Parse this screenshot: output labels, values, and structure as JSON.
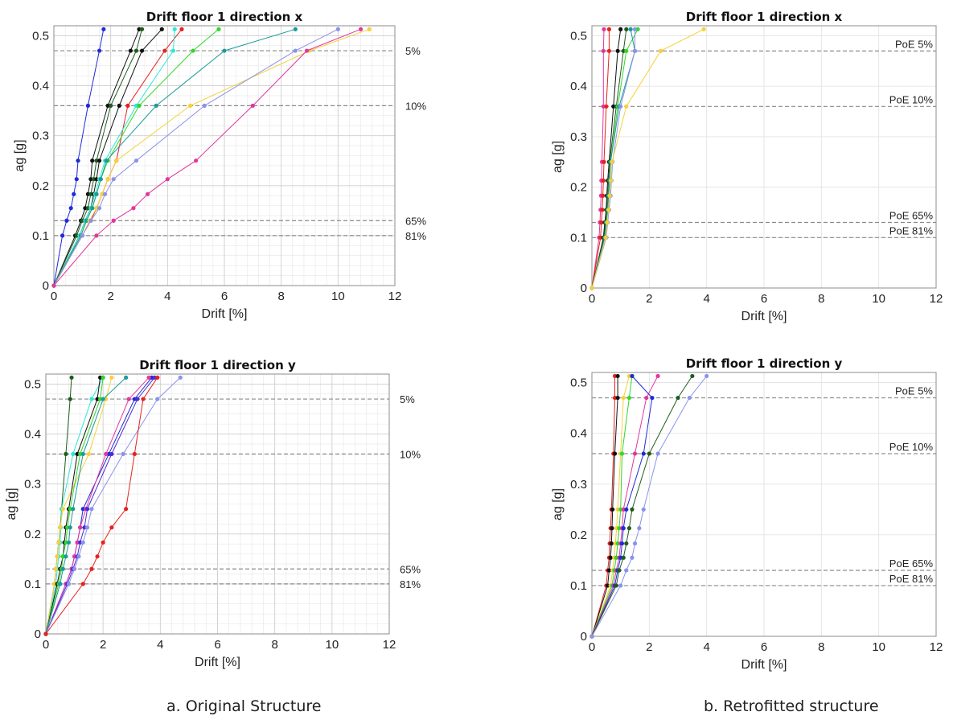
{
  "captions": {
    "left": "a.   Original Structure",
    "right": "b.   Retrofitted structure"
  },
  "colors": {
    "blue": "#1f2bd6",
    "darkgreen": "#1e5c1e",
    "black": "#111111",
    "red": "#e5221f",
    "cyan": "#2ee8d6",
    "green": "#33d62a",
    "teal": "#1a9b9a",
    "lightblue": "#8a93ea",
    "yellow": "#f6d13a",
    "magenta": "#e2379e",
    "purple": "#4a2bd8"
  },
  "chart_data": [
    {
      "type": "line",
      "title": "Drift floor 1 direction x",
      "xlabel": "Drift [%]",
      "ylabel": "ag [g]",
      "xlim": [
        0,
        12
      ],
      "ylim": [
        0,
        0.52
      ],
      "xticks": [
        "0",
        "2",
        "4",
        "6",
        "8",
        "10",
        "12"
      ],
      "yticks": [
        "0",
        "0.1",
        "0.2",
        "0.3",
        "0.4",
        "0.5"
      ],
      "minor_grid": true,
      "hlines": [
        {
          "y": 0.47,
          "label": "5%"
        },
        {
          "y": 0.36,
          "label": "10%"
        },
        {
          "y": 0.13,
          "label": "65%"
        },
        {
          "y": 0.1,
          "label": "81%"
        }
      ],
      "hline_label_side": "outside",
      "ag": [
        0,
        0.1,
        0.13,
        0.155,
        0.183,
        0.213,
        0.25,
        0.36,
        0.47,
        0.513
      ],
      "series": [
        {
          "color": "blue",
          "x": [
            0,
            0.3,
            0.45,
            0.6,
            0.7,
            0.8,
            0.85,
            1.2,
            1.6,
            1.75
          ]
        },
        {
          "color": "black",
          "x": [
            0,
            0.75,
            0.95,
            1.1,
            1.2,
            1.3,
            1.35,
            1.9,
            2.7,
            3.0
          ]
        },
        {
          "color": "darkgreen",
          "x": [
            0,
            0.8,
            1.0,
            1.2,
            1.3,
            1.4,
            1.5,
            2.0,
            2.9,
            3.1
          ]
        },
        {
          "color": "black",
          "x": [
            0,
            0.9,
            1.1,
            1.3,
            1.4,
            1.5,
            1.6,
            2.3,
            3.1,
            3.8
          ]
        },
        {
          "color": "red",
          "x": [
            0,
            1.0,
            1.3,
            1.5,
            1.7,
            1.9,
            2.2,
            2.6,
            3.9,
            4.5
          ]
        },
        {
          "color": "cyan",
          "x": [
            0,
            0.9,
            1.1,
            1.3,
            1.45,
            1.6,
            1.8,
            2.9,
            4.2,
            4.25
          ]
        },
        {
          "color": "green",
          "x": [
            0,
            0.95,
            1.15,
            1.35,
            1.5,
            1.65,
            1.9,
            3.0,
            4.9,
            5.8
          ]
        },
        {
          "color": "teal",
          "x": [
            0,
            0.95,
            1.15,
            1.35,
            1.5,
            1.65,
            1.85,
            3.6,
            6.0,
            8.5
          ]
        },
        {
          "color": "yellow",
          "x": [
            0,
            1.0,
            1.25,
            1.5,
            1.7,
            1.9,
            2.2,
            4.8,
            9.0,
            11.1
          ]
        },
        {
          "color": "lightblue",
          "x": [
            0,
            1.0,
            1.3,
            1.6,
            1.8,
            2.1,
            2.9,
            5.3,
            8.5,
            10.0
          ]
        },
        {
          "color": "magenta",
          "x": [
            0,
            1.5,
            2.1,
            2.8,
            3.3,
            4.0,
            5.0,
            7.0,
            8.9,
            10.8
          ]
        }
      ]
    },
    {
      "type": "line",
      "title": "Drift floor 1 direction x",
      "xlabel": "Drift [%]",
      "ylabel": "ag [g]",
      "xlim": [
        0,
        12
      ],
      "ylim": [
        0,
        0.52
      ],
      "xticks": [
        "0",
        "2",
        "4",
        "6",
        "8",
        "10",
        "12"
      ],
      "yticks": [
        "0",
        "0.1",
        "0.2",
        "0.3",
        "0.4",
        "0.5"
      ],
      "minor_grid": false,
      "hlines": [
        {
          "y": 0.47,
          "label": "PoE 5%"
        },
        {
          "y": 0.36,
          "label": "PoE 10%"
        },
        {
          "y": 0.13,
          "label": "PoE 65%"
        },
        {
          "y": 0.1,
          "label": "PoE 81%"
        }
      ],
      "hline_label_side": "inside",
      "ag": [
        0,
        0.1,
        0.13,
        0.155,
        0.183,
        0.213,
        0.25,
        0.36,
        0.47,
        0.513
      ],
      "series": [
        {
          "color": "magenta",
          "x": [
            0,
            0.25,
            0.28,
            0.3,
            0.32,
            0.33,
            0.35,
            0.4,
            0.4,
            0.42
          ]
        },
        {
          "color": "red",
          "x": [
            0,
            0.3,
            0.33,
            0.36,
            0.38,
            0.4,
            0.42,
            0.5,
            0.6,
            0.6
          ]
        },
        {
          "color": "black",
          "x": [
            0,
            0.4,
            0.45,
            0.5,
            0.52,
            0.55,
            0.6,
            0.75,
            0.9,
            1.0
          ]
        },
        {
          "color": "darkgreen",
          "x": [
            0,
            0.42,
            0.47,
            0.52,
            0.55,
            0.58,
            0.62,
            0.85,
            1.1,
            1.2
          ]
        },
        {
          "color": "green",
          "x": [
            0,
            0.45,
            0.5,
            0.55,
            0.58,
            0.62,
            0.65,
            0.9,
            1.2,
            1.6
          ]
        },
        {
          "color": "teal",
          "x": [
            0,
            0.45,
            0.5,
            0.55,
            0.58,
            0.62,
            0.65,
            0.95,
            1.5,
            1.35
          ]
        },
        {
          "color": "lightblue",
          "x": [
            0,
            0.5,
            0.55,
            0.6,
            0.65,
            0.68,
            0.72,
            1.0,
            1.5,
            1.5
          ]
        },
        {
          "color": "yellow",
          "x": [
            0,
            0.48,
            0.53,
            0.58,
            0.62,
            0.66,
            0.7,
            1.2,
            2.4,
            3.9
          ]
        }
      ]
    },
    {
      "type": "line",
      "title": "Drift floor 1 direction y",
      "xlabel": "Drift [%]",
      "ylabel": "ag [g]",
      "xlim": [
        0,
        12
      ],
      "ylim": [
        0,
        0.52
      ],
      "xticks": [
        "0",
        "2",
        "4",
        "6",
        "8",
        "10",
        "12"
      ],
      "yticks": [
        "0",
        "0.1",
        "0.2",
        "0.3",
        "0.4",
        "0.5"
      ],
      "minor_grid": true,
      "hlines": [
        {
          "y": 0.47,
          "label": "5%"
        },
        {
          "y": 0.36,
          "label": "10%"
        },
        {
          "y": 0.13,
          "label": "65%"
        },
        {
          "y": 0.1,
          "label": "81%"
        }
      ],
      "hline_label_side": "outside",
      "ag": [
        0,
        0.1,
        0.13,
        0.155,
        0.183,
        0.213,
        0.25,
        0.36,
        0.47,
        0.513
      ],
      "series": [
        {
          "color": "darkgreen",
          "x": [
            0,
            0.3,
            0.35,
            0.4,
            0.45,
            0.5,
            0.55,
            0.7,
            0.85,
            0.9
          ]
        },
        {
          "color": "cyan",
          "x": [
            0,
            0.35,
            0.4,
            0.45,
            0.5,
            0.52,
            0.55,
            0.95,
            1.6,
            2.0
          ]
        },
        {
          "color": "yellow",
          "x": [
            0,
            0.3,
            0.35,
            0.4,
            0.45,
            0.5,
            0.6,
            1.5,
            2.1,
            2.3
          ]
        },
        {
          "color": "black",
          "x": [
            0,
            0.4,
            0.5,
            0.6,
            0.65,
            0.7,
            0.8,
            1.1,
            1.8,
            1.9
          ]
        },
        {
          "color": "green",
          "x": [
            0,
            0.45,
            0.55,
            0.6,
            0.7,
            0.75,
            0.85,
            1.2,
            1.9,
            2.0
          ]
        },
        {
          "color": "teal",
          "x": [
            0,
            0.5,
            0.6,
            0.7,
            0.8,
            0.85,
            0.95,
            1.3,
            2.0,
            2.8
          ]
        },
        {
          "color": "blue",
          "x": [
            0,
            0.7,
            0.9,
            1.0,
            1.1,
            1.2,
            1.3,
            2.2,
            3.1,
            3.7
          ]
        },
        {
          "color": "magenta",
          "x": [
            0,
            0.7,
            0.9,
            1.0,
            1.1,
            1.2,
            1.4,
            2.1,
            2.9,
            3.6
          ]
        },
        {
          "color": "purple",
          "x": [
            0,
            0.75,
            0.95,
            1.1,
            1.2,
            1.35,
            1.45,
            2.3,
            3.2,
            3.8
          ]
        },
        {
          "color": "lightblue",
          "x": [
            0,
            0.8,
            1.0,
            1.15,
            1.3,
            1.45,
            1.6,
            2.7,
            3.9,
            4.7
          ]
        },
        {
          "color": "red",
          "x": [
            0,
            1.3,
            1.6,
            1.8,
            2.0,
            2.3,
            2.8,
            3.1,
            3.4,
            3.9
          ]
        }
      ]
    },
    {
      "type": "line",
      "title": "Drift floor 1 direction y",
      "xlabel": "Drift [%]",
      "ylabel": "ag [g]",
      "xlim": [
        0,
        12
      ],
      "ylim": [
        0,
        0.52
      ],
      "xticks": [
        "0",
        "2",
        "4",
        "6",
        "8",
        "10",
        "12"
      ],
      "yticks": [
        "0",
        "0.1",
        "0.2",
        "0.3",
        "0.4",
        "0.5"
      ],
      "minor_grid": false,
      "hlines": [
        {
          "y": 0.47,
          "label": "PoE 5%"
        },
        {
          "y": 0.36,
          "label": "PoE 10%"
        },
        {
          "y": 0.13,
          "label": "PoE 65%"
        },
        {
          "y": 0.1,
          "label": "PoE 81%"
        }
      ],
      "hline_label_side": "inside",
      "ag": [
        0,
        0.1,
        0.13,
        0.155,
        0.183,
        0.213,
        0.25,
        0.36,
        0.47,
        0.513
      ],
      "series": [
        {
          "color": "red",
          "x": [
            0,
            0.5,
            0.55,
            0.6,
            0.62,
            0.65,
            0.68,
            0.75,
            0.8,
            0.8
          ]
        },
        {
          "color": "black",
          "x": [
            0,
            0.55,
            0.6,
            0.65,
            0.68,
            0.7,
            0.72,
            0.8,
            0.9,
            0.9
          ]
        },
        {
          "color": "yellow",
          "x": [
            0,
            0.65,
            0.72,
            0.78,
            0.82,
            0.86,
            0.9,
            1.0,
            1.1,
            1.3
          ]
        },
        {
          "color": "green",
          "x": [
            0,
            0.7,
            0.78,
            0.85,
            0.9,
            0.95,
            1.0,
            1.05,
            1.3,
            1.4
          ]
        },
        {
          "color": "magenta",
          "x": [
            0,
            0.75,
            0.85,
            0.95,
            1.0,
            1.05,
            1.1,
            1.5,
            1.9,
            2.3
          ]
        },
        {
          "color": "blue",
          "x": [
            0,
            0.8,
            0.9,
            1.0,
            1.05,
            1.1,
            1.2,
            1.8,
            2.1,
            1.4
          ]
        },
        {
          "color": "darkgreen",
          "x": [
            0,
            0.85,
            0.95,
            1.1,
            1.2,
            1.3,
            1.4,
            2.0,
            3.0,
            3.5
          ]
        },
        {
          "color": "lightblue",
          "x": [
            0,
            1.0,
            1.2,
            1.4,
            1.5,
            1.65,
            1.8,
            2.3,
            3.4,
            4.0
          ]
        }
      ]
    }
  ]
}
